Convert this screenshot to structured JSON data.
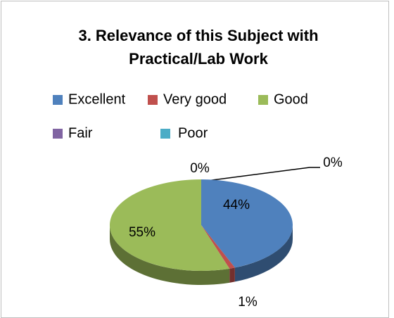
{
  "chart_data": {
    "type": "pie3d",
    "title_lines": [
      "3. Relevance of this Subject with",
      "Practical/Lab Work"
    ],
    "categories": [
      "Excellent",
      "Very good",
      "Good",
      "Fair",
      "Poor"
    ],
    "values": [
      44,
      1,
      55,
      0,
      0
    ],
    "value_labels": [
      "44%",
      "1%",
      "55%",
      "0%",
      "0%"
    ],
    "colors": [
      "#4f81bd",
      "#c0504d",
      "#9bbb59",
      "#8064a2",
      "#4bacc6"
    ],
    "legend": "top"
  }
}
